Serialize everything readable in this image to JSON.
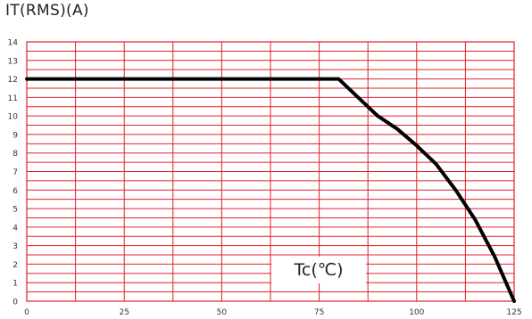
{
  "chart_data": {
    "type": "line",
    "title": "",
    "ylabel": "IT(RMS)(A)",
    "xlabel": "Tc(℃)",
    "xlim": [
      0,
      125
    ],
    "ylim": [
      0,
      14
    ],
    "x_ticks": [
      "0",
      "25",
      "50",
      "75",
      "100",
      "125"
    ],
    "y_ticks": [
      "0",
      "1",
      "2",
      "3",
      "4",
      "5",
      "6",
      "7",
      "8",
      "9",
      "10",
      "11",
      "12",
      "13",
      "14"
    ],
    "grid": true,
    "grid_color": "#e0202a",
    "line_color": "#000000",
    "series": [
      {
        "x": [
          0,
          80,
          85,
          90,
          95,
          100,
          105,
          110,
          115,
          120,
          125
        ],
        "y": [
          12,
          12,
          11.0,
          10.0,
          9.3,
          8.4,
          7.4,
          6.0,
          4.4,
          2.4,
          0
        ]
      }
    ]
  }
}
